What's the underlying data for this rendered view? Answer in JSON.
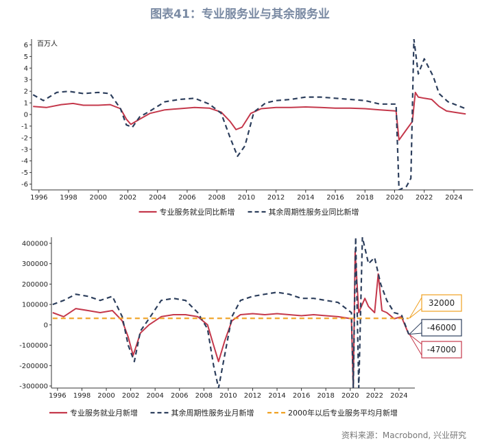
{
  "page": {
    "title": "图表41：专业服务业与其余服务业",
    "source": "资料来源：Macrobond, 兴业研究"
  },
  "colors": {
    "red": "#c4374a",
    "navy": "#2c3e5c",
    "orange": "#f0a020",
    "axis": "#333333"
  },
  "chart_data": [
    {
      "type": "line",
      "ylabel": "百万人",
      "ylim": [
        -6.5,
        6.5
      ],
      "yticks": [
        -6,
        -5,
        -4,
        -3,
        -2,
        -1,
        0,
        1,
        2,
        3,
        4,
        5,
        6
      ],
      "xlim": [
        1995.5,
        2025.3
      ],
      "xticks": [
        1996,
        1998,
        2000,
        2002,
        2004,
        2006,
        2008,
        2010,
        2012,
        2014,
        2016,
        2018,
        2020,
        2022,
        2024
      ],
      "series": [
        {
          "name": "专业服务就业同比新增",
          "style": "solid",
          "color": "#c4374a",
          "points": [
            [
              1995.6,
              0.7
            ],
            [
              1996.5,
              0.6
            ],
            [
              1997.5,
              0.85
            ],
            [
              1998.3,
              0.95
            ],
            [
              1999,
              0.8
            ],
            [
              2000,
              0.8
            ],
            [
              2000.8,
              0.85
            ],
            [
              2001.5,
              0.5
            ],
            [
              2001.9,
              -0.4
            ],
            [
              2002.2,
              -0.85
            ],
            [
              2002.8,
              -0.4
            ],
            [
              2003.5,
              0.1
            ],
            [
              2004.5,
              0.4
            ],
            [
              2005.5,
              0.5
            ],
            [
              2006.5,
              0.6
            ],
            [
              2007.5,
              0.55
            ],
            [
              2008.3,
              0.2
            ],
            [
              2008.9,
              -0.6
            ],
            [
              2009.3,
              -1.3
            ],
            [
              2009.7,
              -1.1
            ],
            [
              2010.3,
              0.1
            ],
            [
              2011,
              0.5
            ],
            [
              2012,
              0.6
            ],
            [
              2013,
              0.6
            ],
            [
              2014,
              0.65
            ],
            [
              2015,
              0.6
            ],
            [
              2016,
              0.55
            ],
            [
              2017,
              0.55
            ],
            [
              2018,
              0.5
            ],
            [
              2019,
              0.4
            ],
            [
              2020.1,
              0.3
            ],
            [
              2020.3,
              -2.2
            ],
            [
              2020.8,
              -1.3
            ],
            [
              2021.2,
              -0.6
            ],
            [
              2021.4,
              1.9
            ],
            [
              2021.6,
              1.5
            ],
            [
              2022,
              1.4
            ],
            [
              2022.5,
              1.3
            ],
            [
              2023,
              0.7
            ],
            [
              2023.5,
              0.3
            ],
            [
              2024,
              0.2
            ],
            [
              2024.8,
              0.05
            ]
          ]
        },
        {
          "name": "其余周期性服务业同比新增",
          "style": "dashed",
          "color": "#2c3e5c",
          "points": [
            [
              1995.6,
              1.7
            ],
            [
              1996.3,
              1.2
            ],
            [
              1997.2,
              1.9
            ],
            [
              1998,
              2.0
            ],
            [
              1999,
              1.8
            ],
            [
              2000,
              1.9
            ],
            [
              2000.8,
              1.8
            ],
            [
              2001.5,
              0.5
            ],
            [
              2001.9,
              -0.9
            ],
            [
              2002.3,
              -1.1
            ],
            [
              2002.8,
              -0.2
            ],
            [
              2003.5,
              0.3
            ],
            [
              2004.5,
              1.1
            ],
            [
              2005.5,
              1.3
            ],
            [
              2006.5,
              1.4
            ],
            [
              2007.5,
              0.9
            ],
            [
              2008.3,
              0.1
            ],
            [
              2008.9,
              -2.0
            ],
            [
              2009.4,
              -3.6
            ],
            [
              2009.9,
              -2.7
            ],
            [
              2010.5,
              0.2
            ],
            [
              2011.3,
              1.0
            ],
            [
              2012,
              1.2
            ],
            [
              2013,
              1.3
            ],
            [
              2014,
              1.5
            ],
            [
              2015,
              1.5
            ],
            [
              2016,
              1.4
            ],
            [
              2017,
              1.3
            ],
            [
              2018,
              1.2
            ],
            [
              2019,
              0.9
            ],
            [
              2020.1,
              0.9
            ],
            [
              2020.3,
              -6.5
            ],
            [
              2020.8,
              -6.2
            ],
            [
              2021.1,
              -5.5
            ],
            [
              2021.3,
              6.5
            ],
            [
              2021.6,
              3.5
            ],
            [
              2022,
              4.8
            ],
            [
              2022.6,
              3.3
            ],
            [
              2023,
              1.8
            ],
            [
              2023.6,
              1.1
            ],
            [
              2024.2,
              0.8
            ],
            [
              2024.8,
              0.5
            ]
          ]
        }
      ]
    },
    {
      "type": "line",
      "ylim": [
        -310000,
        430000
      ],
      "yticks": [
        -300000,
        -200000,
        -100000,
        0,
        100000,
        200000,
        300000,
        400000
      ],
      "xlim": [
        1995.5,
        2025.3
      ],
      "xticks": [
        1996,
        1998,
        2000,
        2002,
        2004,
        2006,
        2008,
        2010,
        2012,
        2014,
        2016,
        2018,
        2020,
        2022,
        2024
      ],
      "series": [
        {
          "name": "专业服务就业月新增",
          "style": "solid",
          "color": "#c4374a",
          "points": [
            [
              1995.6,
              60000
            ],
            [
              1996.5,
              40000
            ],
            [
              1997.5,
              80000
            ],
            [
              1998.5,
              70000
            ],
            [
              1999.5,
              60000
            ],
            [
              2000.5,
              70000
            ],
            [
              2001.3,
              20000
            ],
            [
              2001.8,
              -60000
            ],
            [
              2002.2,
              -150000
            ],
            [
              2002.8,
              -40000
            ],
            [
              2003.5,
              0
            ],
            [
              2004.5,
              40000
            ],
            [
              2005.5,
              50000
            ],
            [
              2006.5,
              50000
            ],
            [
              2007.5,
              40000
            ],
            [
              2008.3,
              0
            ],
            [
              2008.8,
              -100000
            ],
            [
              2009.2,
              -180000
            ],
            [
              2009.7,
              -80000
            ],
            [
              2010.3,
              20000
            ],
            [
              2011,
              50000
            ],
            [
              2012,
              55000
            ],
            [
              2013,
              50000
            ],
            [
              2014,
              55000
            ],
            [
              2015,
              50000
            ],
            [
              2016,
              45000
            ],
            [
              2017,
              50000
            ],
            [
              2018,
              45000
            ],
            [
              2019,
              40000
            ],
            [
              2020.1,
              30000
            ],
            [
              2020.25,
              -310000
            ],
            [
              2020.4,
              360000
            ],
            [
              2020.7,
              60000
            ],
            [
              2021.2,
              130000
            ],
            [
              2021.5,
              90000
            ],
            [
              2022,
              60000
            ],
            [
              2022.3,
              250000
            ],
            [
              2022.6,
              70000
            ],
            [
              2023,
              60000
            ],
            [
              2023.6,
              30000
            ],
            [
              2024.2,
              40000
            ],
            [
              2024.8,
              -47000
            ]
          ]
        },
        {
          "name": "其余周期性服务业月新增",
          "style": "dashed",
          "color": "#2c3e5c",
          "points": [
            [
              1995.6,
              100000
            ],
            [
              1996.5,
              120000
            ],
            [
              1997.5,
              150000
            ],
            [
              1998.5,
              140000
            ],
            [
              1999.5,
              120000
            ],
            [
              2000.5,
              140000
            ],
            [
              2001.3,
              40000
            ],
            [
              2001.8,
              -100000
            ],
            [
              2002.3,
              -180000
            ],
            [
              2002.8,
              -30000
            ],
            [
              2003.5,
              30000
            ],
            [
              2004.5,
              120000
            ],
            [
              2005.5,
              130000
            ],
            [
              2006.5,
              120000
            ],
            [
              2007.5,
              60000
            ],
            [
              2008.3,
              -20000
            ],
            [
              2008.8,
              -200000
            ],
            [
              2009.2,
              -310000
            ],
            [
              2009.7,
              -150000
            ],
            [
              2010.3,
              40000
            ],
            [
              2011,
              120000
            ],
            [
              2012,
              140000
            ],
            [
              2013,
              150000
            ],
            [
              2014,
              160000
            ],
            [
              2015,
              150000
            ],
            [
              2016,
              130000
            ],
            [
              2017,
              130000
            ],
            [
              2018,
              120000
            ],
            [
              2019,
              110000
            ],
            [
              2020.1,
              60000
            ],
            [
              2020.25,
              -310000
            ],
            [
              2020.45,
              430000
            ],
            [
              2020.7,
              -310000
            ],
            [
              2021,
              430000
            ],
            [
              2021.5,
              300000
            ],
            [
              2022,
              330000
            ],
            [
              2022.5,
              200000
            ],
            [
              2023,
              120000
            ],
            [
              2023.6,
              60000
            ],
            [
              2024.2,
              50000
            ],
            [
              2024.8,
              -46000
            ]
          ]
        },
        {
          "name": "2000年以后专业服务平均月新增",
          "style": "dashed",
          "color": "#f0a020",
          "points": [
            [
              1995.6,
              32000
            ],
            [
              2024.8,
              32000
            ]
          ]
        }
      ],
      "callouts": [
        {
          "label": "32000",
          "value": 32000,
          "color": "#f0a020"
        },
        {
          "label": "-46000",
          "value": -46000,
          "color": "#2c3e5c"
        },
        {
          "label": "-47000",
          "value": -47000,
          "color": "#c4374a"
        }
      ]
    }
  ]
}
